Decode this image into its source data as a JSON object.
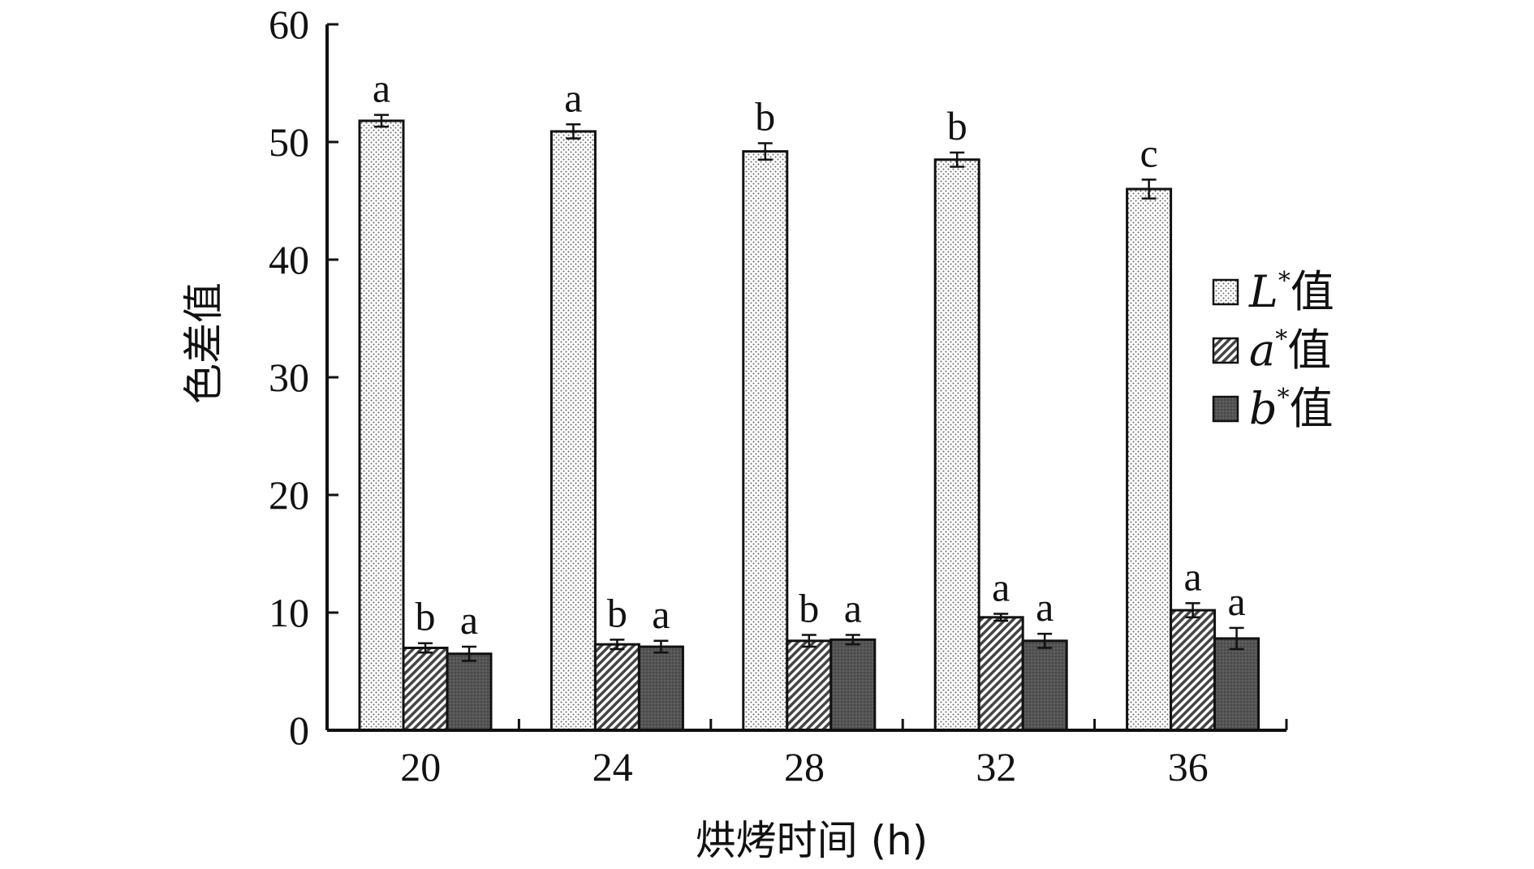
{
  "chart_data": {
    "type": "bar",
    "xlabel": "烘烤时间 (h)",
    "ylabel": "色差值",
    "ylim": [
      0,
      60
    ],
    "yticks": [
      0,
      10,
      20,
      30,
      40,
      50,
      60
    ],
    "categories": [
      "20",
      "24",
      "28",
      "32",
      "36"
    ],
    "legend_position": "right",
    "series": [
      {
        "name": "L*值",
        "legend_letter": "L",
        "legend_suffix": "值",
        "pattern": "dots",
        "values": [
          51.8,
          50.9,
          49.2,
          48.5,
          46.0
        ],
        "errors": [
          0.5,
          0.6,
          0.7,
          0.6,
          0.8
        ],
        "labels": [
          "a",
          "a",
          "b",
          "b",
          "c"
        ]
      },
      {
        "name": "a*值",
        "legend_letter": "a",
        "legend_suffix": "值",
        "pattern": "hatch",
        "values": [
          7.0,
          7.3,
          7.6,
          9.6,
          10.2
        ],
        "errors": [
          0.4,
          0.4,
          0.5,
          0.3,
          0.6
        ],
        "labels": [
          "b",
          "b",
          "b",
          "a",
          "a"
        ]
      },
      {
        "name": "b*值",
        "legend_letter": "b",
        "legend_suffix": "值",
        "pattern": "dark",
        "values": [
          6.5,
          7.1,
          7.7,
          7.6,
          7.8
        ],
        "errors": [
          0.6,
          0.5,
          0.4,
          0.6,
          0.9
        ],
        "labels": [
          "a",
          "a",
          "a",
          "a",
          "a"
        ]
      }
    ]
  }
}
